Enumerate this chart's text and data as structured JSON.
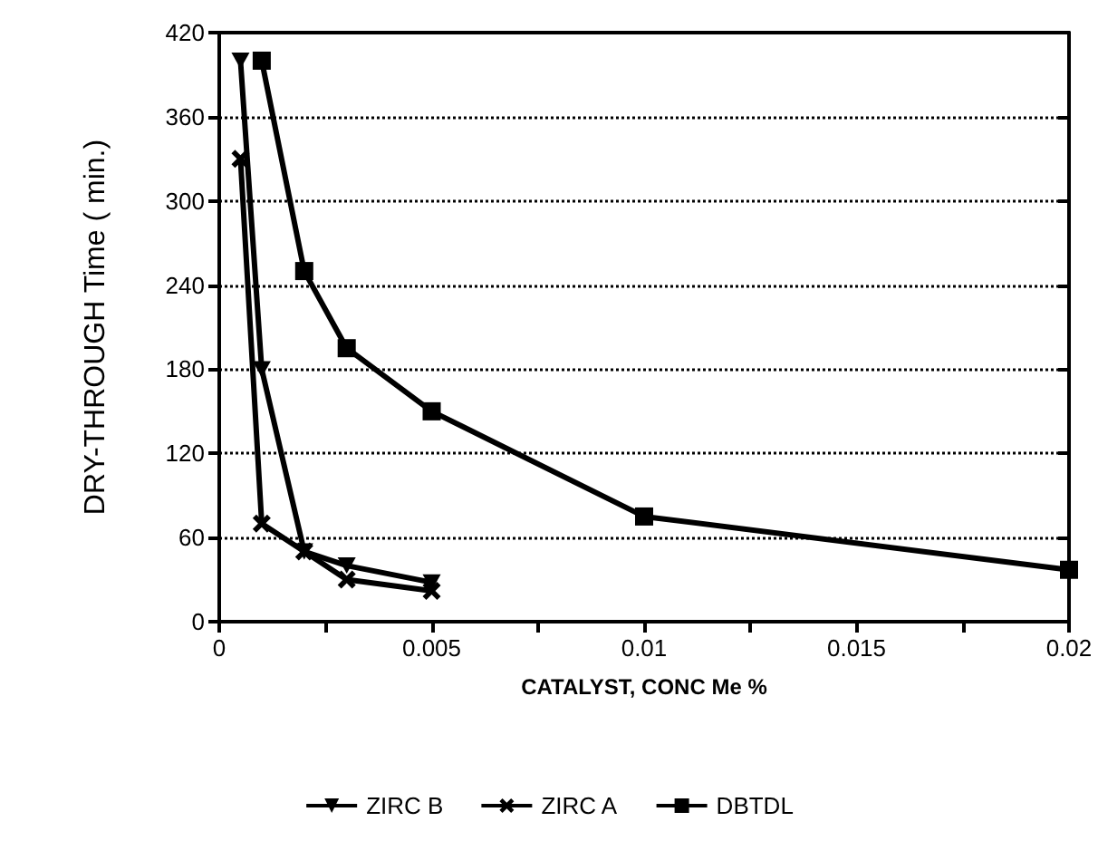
{
  "chart_data": {
    "type": "line",
    "xlabel": "CATALYST, CONC Me %",
    "ylabel": "DRY-THROUGH Time ( min.)",
    "xlim": [
      0,
      0.02
    ],
    "xticks": [
      0,
      {
        "value": 0.0025,
        "label": null
      },
      0.005,
      {
        "value": 0.0075,
        "label": null
      },
      0.01,
      {
        "value": 0.0125,
        "label": null
      },
      0.015,
      {
        "value": 0.0175,
        "label": null
      },
      0.02
    ],
    "ylim": [
      0,
      420
    ],
    "yticks": [
      0,
      60,
      120,
      180,
      240,
      300,
      360,
      420
    ],
    "grid": "y",
    "legend": "bottom",
    "line_style": "solid",
    "series": [
      {
        "name": "ZIRC B",
        "color": "#000000",
        "marker": "triangle",
        "x": [
          0.0005,
          0.001,
          0.002,
          0.003,
          0.005
        ],
        "values": [
          400,
          180,
          50,
          40,
          28
        ]
      },
      {
        "name": "ZIRC A",
        "color": "#000000",
        "marker": "cross",
        "x": [
          0.0005,
          0.001,
          0.002,
          0.003,
          0.005
        ],
        "values": [
          330,
          70,
          50,
          30,
          22
        ]
      },
      {
        "name": "DBTDL",
        "color": "#000000",
        "marker": "square",
        "x": [
          0.001,
          0.002,
          0.003,
          0.005,
          0.01,
          0.02
        ],
        "values": [
          400,
          250,
          195,
          150,
          75,
          37
        ]
      }
    ]
  }
}
